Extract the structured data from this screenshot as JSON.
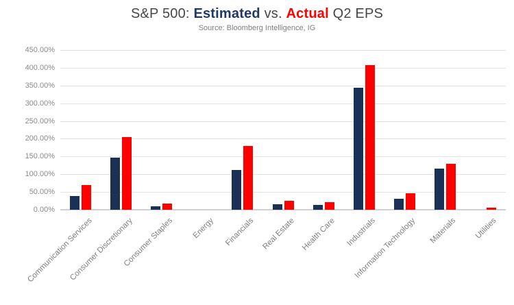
{
  "title": {
    "prefix": "S&P 500: ",
    "estimated_label": "Estimated",
    "vs": " vs. ",
    "actual_label": "Actual",
    "suffix": " Q2 EPS"
  },
  "subtitle": "Source: Bloomberg Intelligence, IG",
  "colors": {
    "estimated_bar": "#1B3055",
    "actual_bar": "#FF0000",
    "title_text": "#474747",
    "axis_text": "#8A8A8A",
    "gridline": "#E2E2E2"
  },
  "chart_data": {
    "type": "bar",
    "title": "S&P 500: Estimated vs. Actual Q2 EPS",
    "subtitle": "Source: Bloomberg Intelligence, IG",
    "categories": [
      "Communication Services",
      "Consumer Discretionary",
      "Consumer Staples",
      "Energy",
      "Financials",
      "Real Estate",
      "Health Care",
      "Industrials",
      "Information Technology",
      "Materials",
      "Utilities"
    ],
    "series": [
      {
        "name": "Estimated",
        "color": "#1B3055",
        "values": [
          38,
          146,
          10,
          0,
          112,
          15,
          13,
          344,
          31,
          115,
          0
        ]
      },
      {
        "name": "Actual",
        "color": "#FF0000",
        "values": [
          70,
          205,
          18,
          0,
          180,
          25,
          22,
          408,
          46,
          130,
          5
        ]
      }
    ],
    "xlabel": "",
    "ylabel": "",
    "ylim": [
      0,
      450
    ],
    "ytick_step": 50,
    "ytick_labels": [
      "0.00%",
      "50.00%",
      "100.00%",
      "150.00%",
      "200.00%",
      "250.00%",
      "300.00%",
      "350.00%",
      "400.00%",
      "450.00%"
    ],
    "grid": true,
    "legend_position": "none (series named in title)"
  }
}
